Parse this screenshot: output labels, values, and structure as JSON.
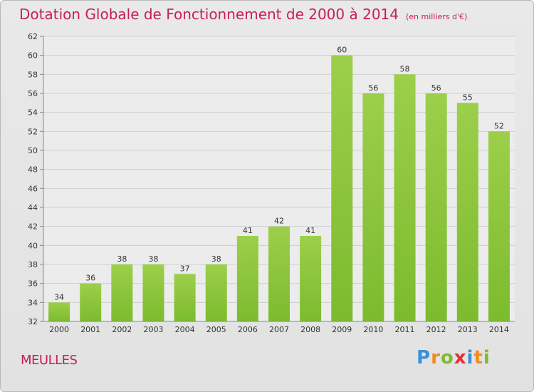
{
  "chart_data": {
    "type": "bar",
    "title": "Dotation Globale de Fonctionnement de 2000 à 2014",
    "unit": "(en milliers d'€)",
    "categories": [
      "2000",
      "2001",
      "2002",
      "2003",
      "2004",
      "2005",
      "2006",
      "2007",
      "2008",
      "2009",
      "2010",
      "2011",
      "2012",
      "2013",
      "2014"
    ],
    "values": [
      34,
      36,
      38,
      38,
      37,
      38,
      41,
      42,
      41,
      60,
      56,
      58,
      56,
      55,
      52
    ],
    "ylim": [
      32,
      62
    ],
    "yticks": [
      32,
      34,
      36,
      38,
      40,
      42,
      44,
      46,
      48,
      50,
      52,
      54,
      56,
      58,
      60,
      62
    ],
    "grid": true,
    "bar_color": "#7cbb2e",
    "bar_color_light": "#9ccf4a"
  },
  "commune": "MEULLES",
  "logo": {
    "letters": [
      {
        "ch": "P",
        "color": "#3a8fd8"
      },
      {
        "ch": "r",
        "color": "#f28a1e"
      },
      {
        "ch": "o",
        "color": "#7cbb2e"
      },
      {
        "ch": "x",
        "color": "#e0303a"
      },
      {
        "ch": "i",
        "color": "#3a8fd8"
      },
      {
        "ch": "t",
        "color": "#f28a1e"
      },
      {
        "ch": "i",
        "color": "#7cbb2e"
      }
    ]
  }
}
